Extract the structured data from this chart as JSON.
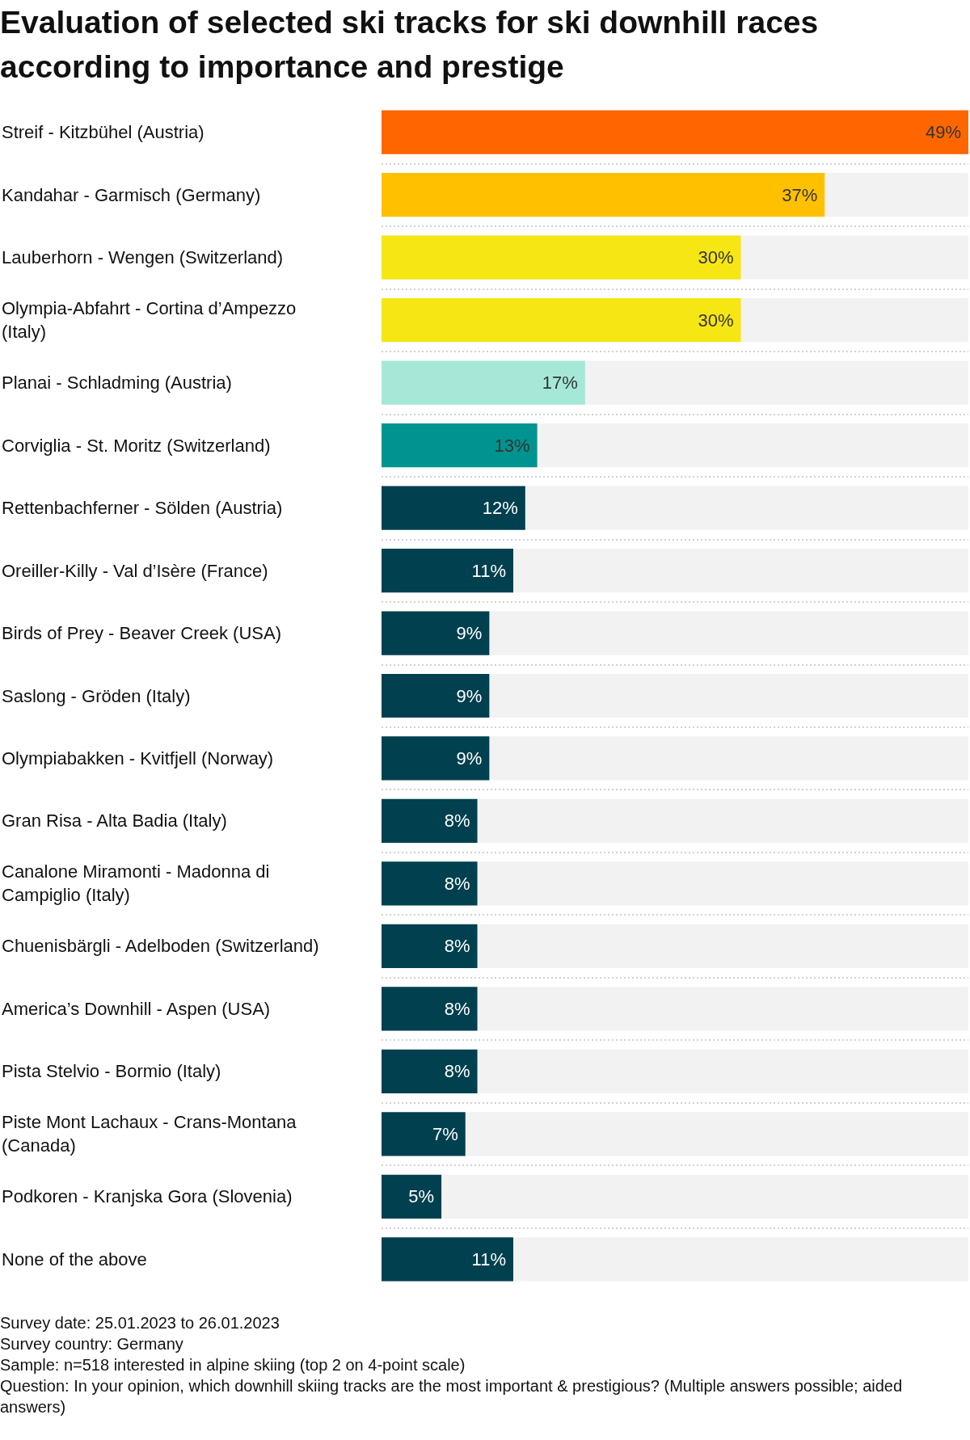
{
  "chart_data": {
    "type": "bar",
    "orientation": "horizontal",
    "title": "Evaluation of selected ski tracks for ski downhill races according to importance and prestige",
    "categories": [
      "Streif - Kitzbühel (Austria)",
      "Kandahar - Garmisch (Germany)",
      "Lauberhorn - Wengen (Switzerland)",
      "Olympia-Abfahrt - Cortina d’Ampezzo (Italy)",
      "Planai - Schladming (Austria)",
      "Corviglia - St. Moritz (Switzerland)",
      "Rettenbachferner - Sölden (Austria)",
      "Oreiller-Killy - Val d’Isère (France)",
      "Birds of Prey - Beaver Creek (USA)",
      "Saslong - Gröden (Italy)",
      "Olympiabakken - Kvitfjell (Norway)",
      "Gran Risa - Alta Badia (Italy)",
      "Canalone Miramonti - Madonna di Campiglio (Italy)",
      "Chuenisbärgli - Adelboden (Switzerland)",
      "America’s Downhill - Aspen (USA)",
      "Pista Stelvio - Bormio (Italy)",
      "Piste Mont Lachaux - Crans-Montana (Canada)",
      "Podkoren - Kranjska Gora (Slovenia)",
      "None of the above"
    ],
    "values": [
      49,
      37,
      30,
      30,
      17,
      13,
      12,
      11,
      9,
      9,
      9,
      8,
      8,
      8,
      8,
      8,
      7,
      5,
      11
    ],
    "value_labels": [
      "49%",
      "37%",
      "30%",
      "30%",
      "17%",
      "13%",
      "12%",
      "11%",
      "9%",
      "9%",
      "9%",
      "8%",
      "8%",
      "8%",
      "8%",
      "8%",
      "7%",
      "5%",
      "11%"
    ],
    "colors": [
      "#ff6600",
      "#ffc000",
      "#f5e614",
      "#f5e614",
      "#a6e8d8",
      "#00938f",
      "#00404f",
      "#00404f",
      "#00404f",
      "#00404f",
      "#00404f",
      "#00404f",
      "#00404f",
      "#00404f",
      "#00404f",
      "#00404f",
      "#00404f",
      "#00404f",
      "#00404f"
    ],
    "tick_labels": "y",
    "grid": "y",
    "annotations": [
      "Survey date: 25.01.2023 to 26.01.2023",
      "Survey country: Germany",
      "Sample: n=518 interested in alpine skiing (top 2 on 4-point scale)",
      "Question: In your opinion, which downhill skiing tracks are the most important & prestigious? (Multiple answers possible; aided answers)"
    ]
  }
}
